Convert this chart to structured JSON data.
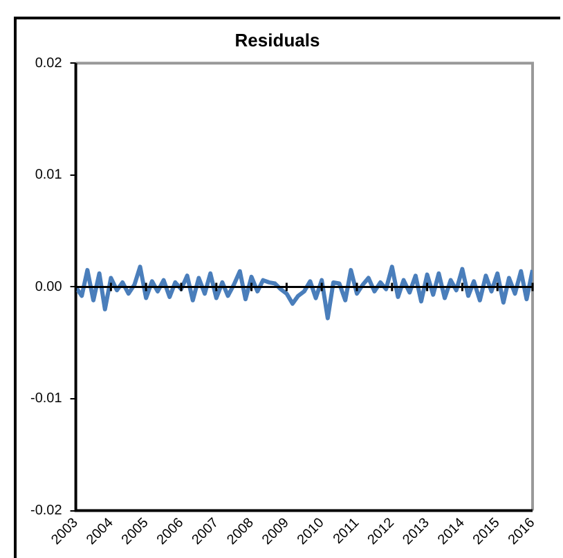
{
  "chart_data": {
    "type": "line",
    "title": "Residuals",
    "x": [
      2003,
      2003.17,
      2003.33,
      2003.5,
      2003.67,
      2003.83,
      2004,
      2004.17,
      2004.33,
      2004.5,
      2004.67,
      2004.83,
      2005,
      2005.17,
      2005.33,
      2005.5,
      2005.67,
      2005.83,
      2006,
      2006.17,
      2006.33,
      2006.5,
      2006.67,
      2006.83,
      2007,
      2007.17,
      2007.33,
      2007.5,
      2007.67,
      2007.83,
      2008,
      2008.17,
      2008.33,
      2008.5,
      2008.67,
      2008.83,
      2009,
      2009.17,
      2009.33,
      2009.5,
      2009.67,
      2009.83,
      2010,
      2010.17,
      2010.33,
      2010.5,
      2010.67,
      2010.83,
      2011,
      2011.17,
      2011.33,
      2011.5,
      2011.67,
      2011.83,
      2012,
      2012.17,
      2012.33,
      2012.5,
      2012.67,
      2012.83,
      2013,
      2013.17,
      2013.33,
      2013.5,
      2013.67,
      2013.83,
      2014,
      2014.17,
      2014.33,
      2014.5,
      2014.67,
      2014.83,
      2015,
      2015.17,
      2015.33,
      2015.5,
      2015.67,
      2015.83,
      2016
    ],
    "series": [
      {
        "color": "#4a7ebb",
        "values": [
          0,
          -0.0008,
          0.0015,
          -0.0012,
          0.0012,
          -0.002,
          0.0008,
          -0.0003,
          0.0004,
          -0.0006,
          0.0002,
          0.0018,
          -0.001,
          0.0005,
          -0.0004,
          0.0006,
          -0.0009,
          0.0004,
          -0.0002,
          0.001,
          -0.0012,
          0.0008,
          -0.0006,
          0.0012,
          -0.001,
          0.0004,
          -0.0008,
          0.0002,
          0.0014,
          -0.0011,
          0.0009,
          -0.0004,
          0.0006,
          0.0004,
          0.0003,
          -0.0002,
          -0.0006,
          -0.0015,
          -0.0008,
          -0.0004,
          0.0005,
          -0.001,
          0.0006,
          -0.0028,
          0.0004,
          0.0003,
          -0.0012,
          0.0015,
          -0.0006,
          0.0002,
          0.0008,
          -0.0004,
          0.0004,
          -0.0002,
          0.0018,
          -0.0009,
          0.0006,
          -0.0005,
          0.001,
          -0.0013,
          0.0011,
          -0.0007,
          0.0012,
          -0.001,
          0.0006,
          -0.0003,
          0.0016,
          -0.0008,
          0.0005,
          -0.0012,
          0.001,
          -0.0004,
          0.0012,
          -0.0014,
          0.0008,
          -0.0006,
          0.0014,
          -0.0011,
          0.0015
        ]
      }
    ],
    "xlim": [
      2003,
      2016
    ],
    "xticks": [
      2003,
      2004,
      2005,
      2006,
      2007,
      2008,
      2009,
      2010,
      2011,
      2012,
      2013,
      2014,
      2015,
      2016
    ],
    "ylim": [
      -0.02,
      0.02
    ],
    "yticks": [
      {
        "value": -0.02,
        "label": "-0.02"
      },
      {
        "value": -0.01,
        "label": "-0.01"
      },
      {
        "value": 0,
        "label": "0.00"
      },
      {
        "value": 0.01,
        "label": "0.01"
      },
      {
        "value": 0.02,
        "label": "0.02"
      }
    ],
    "ref_lines": [
      {
        "axis": "y",
        "value": 0,
        "color": "#000000"
      }
    ],
    "grid": false,
    "legend": false,
    "marker": "none",
    "line_style": "solid"
  }
}
